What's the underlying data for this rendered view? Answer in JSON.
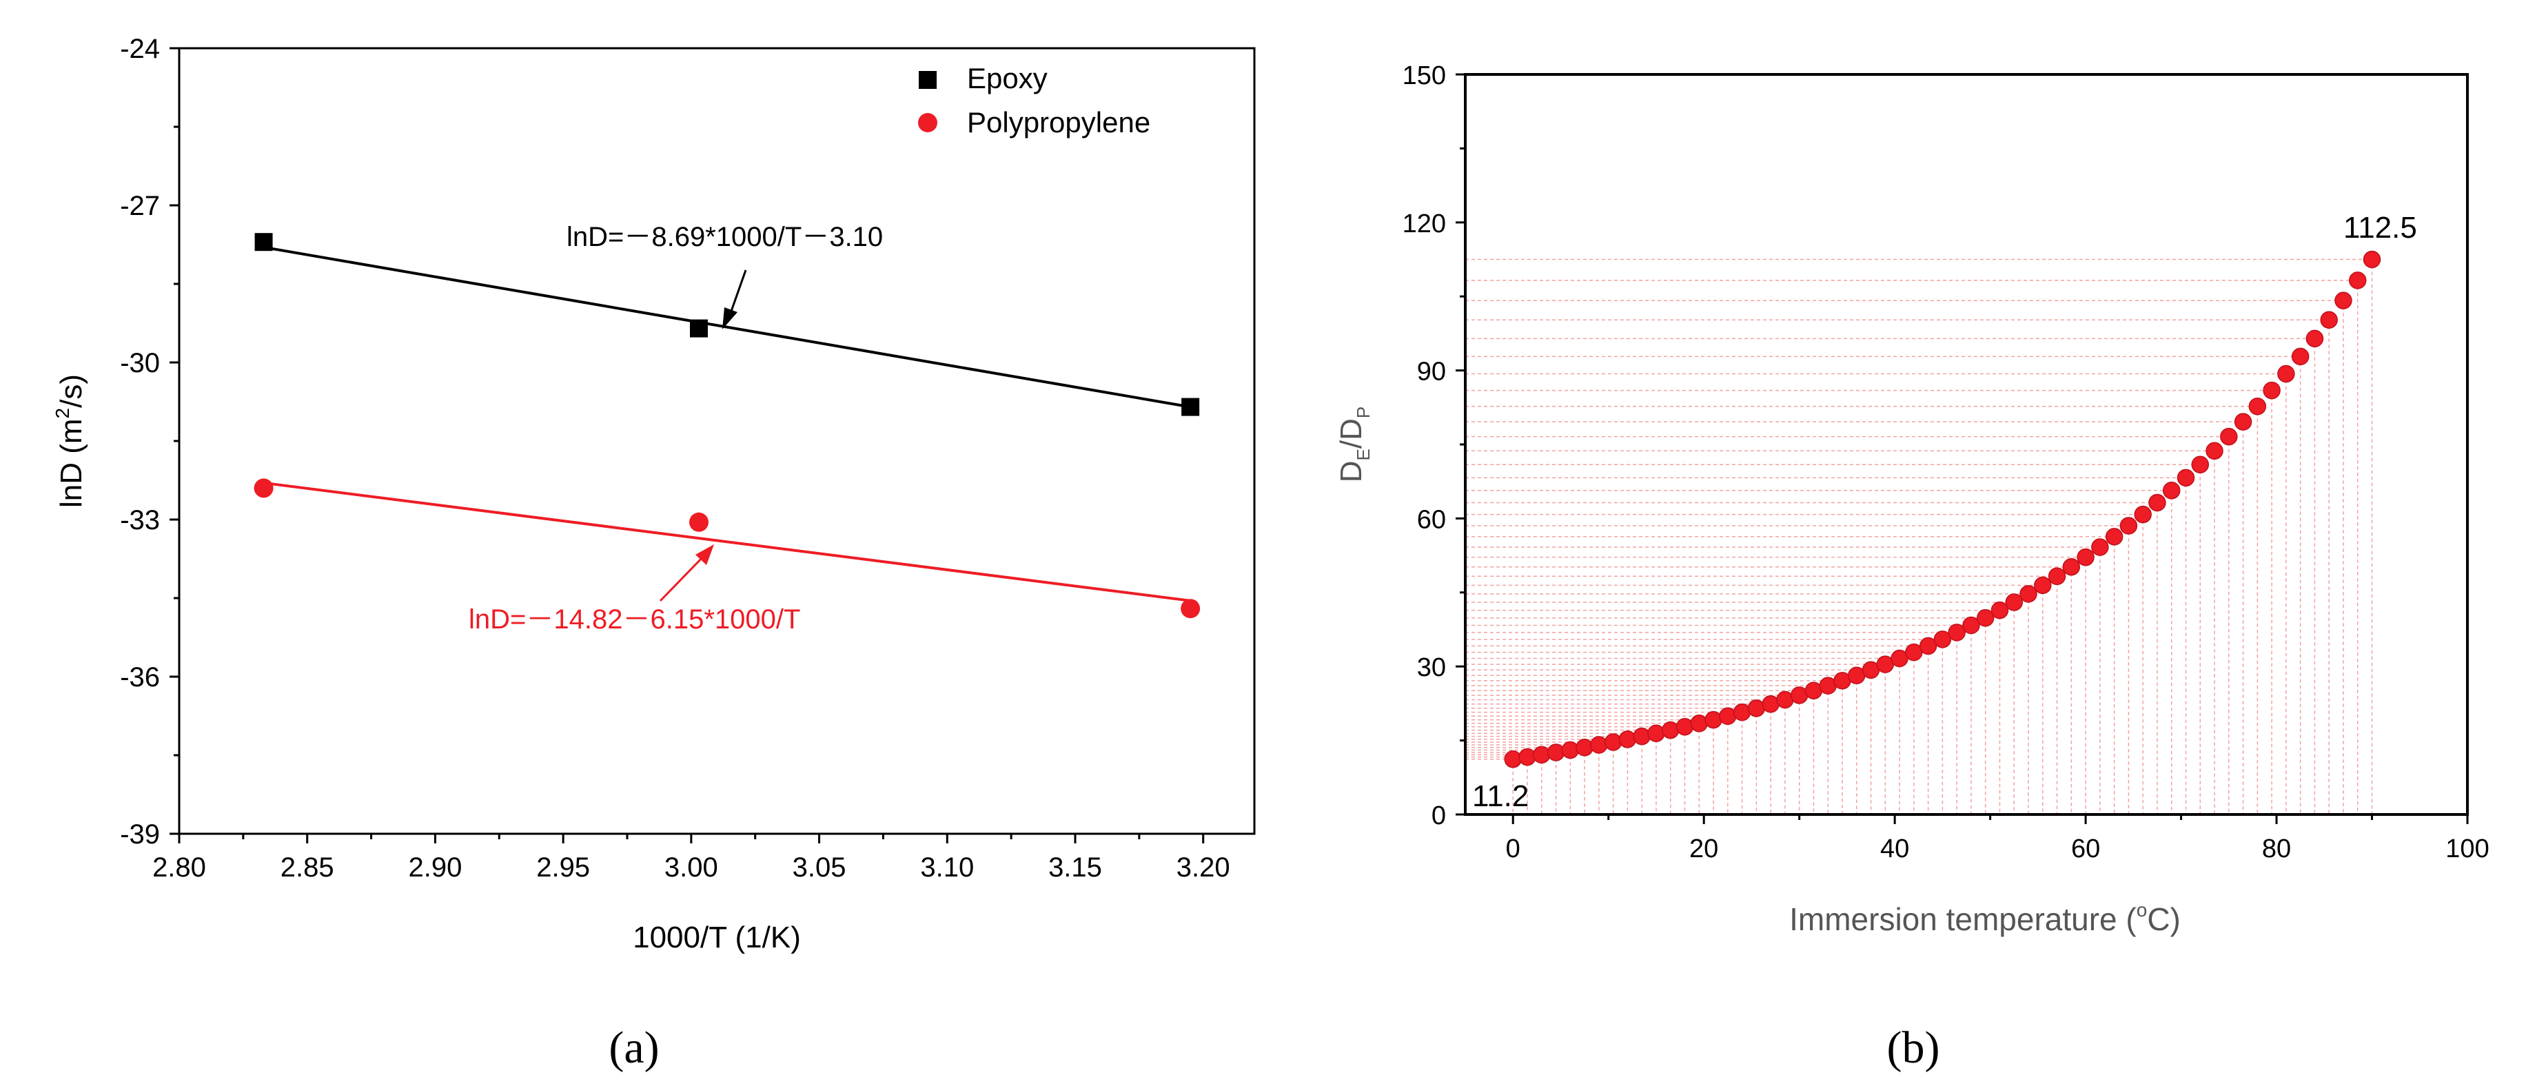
{
  "chart_data": [
    {
      "type": "scatter",
      "panel_label": "(a)",
      "xlabel": "1000/T (1/K)",
      "ylabel": "lnD (m²/s)",
      "ylabel_parts": {
        "prefix": "lnD (m",
        "sup": "2",
        "suffix": "/s)"
      },
      "xlim": [
        2.8,
        3.22
      ],
      "ylim": [
        -39,
        -24
      ],
      "xticks": [
        2.8,
        2.85,
        2.9,
        2.95,
        3.0,
        3.05,
        3.1,
        3.15,
        3.2
      ],
      "xtick_labels": [
        "2.80",
        "2.85",
        "2.90",
        "2.95",
        "3.00",
        "3.05",
        "3.10",
        "3.15",
        "3.20"
      ],
      "yticks": [
        -24,
        -27,
        -30,
        -33,
        -36,
        -39
      ],
      "ytick_labels": [
        "-24",
        "-27",
        "-30",
        "-33",
        "-36",
        "-39"
      ],
      "legend": "top-right",
      "series": [
        {
          "name": "Epoxy",
          "marker": "square",
          "color": "#000000",
          "x": [
            2.833,
            3.003,
            3.195
          ],
          "y": [
            -27.7,
            -29.35,
            -30.85
          ],
          "fit": {
            "x": [
              2.833,
              3.195
            ],
            "y": [
              -27.8,
              -30.85
            ]
          },
          "equation": "lnD=－8.69*1000/T－3.10"
        },
        {
          "name": "Polypropylene",
          "marker": "circle",
          "color": "#ee1c25",
          "x": [
            2.833,
            3.003,
            3.195
          ],
          "y": [
            -32.4,
            -33.05,
            -34.7
          ],
          "fit": {
            "x": [
              2.833,
              3.195
            ],
            "y": [
              -32.3,
              -34.55
            ]
          },
          "equation": "lnD=－14.82－6.15*1000/T"
        }
      ]
    },
    {
      "type": "scatter",
      "panel_label": "(b)",
      "xlabel": "Immersion temperature (°C)",
      "xlabel_parts": {
        "prefix": "Immersion temperature (",
        "sup": "o",
        "suffix": "C)"
      },
      "ylabel": "DE/DP",
      "ylabel_parts": {
        "d1": "D",
        "s1": "E",
        "sep": "/D",
        "s2": "P"
      },
      "xlim": [
        -5,
        100
      ],
      "ylim": [
        0,
        150
      ],
      "xticks": [
        0,
        20,
        40,
        60,
        80,
        100
      ],
      "xtick_labels": [
        "0",
        "20",
        "40",
        "60",
        "80",
        "100"
      ],
      "yticks": [
        0,
        30,
        60,
        90,
        120,
        150
      ],
      "ytick_labels": [
        "0",
        "30",
        "60",
        "90",
        "120",
        "150"
      ],
      "curve": {
        "x_start": 0,
        "x_end": 90,
        "x_step": 1.5,
        "y_start": 11.2,
        "y_end": 112.5,
        "color": "#ee1c25"
      },
      "annotations": {
        "start_label": "11.2",
        "end_label": "112.5"
      },
      "guide_lines": true
    }
  ]
}
